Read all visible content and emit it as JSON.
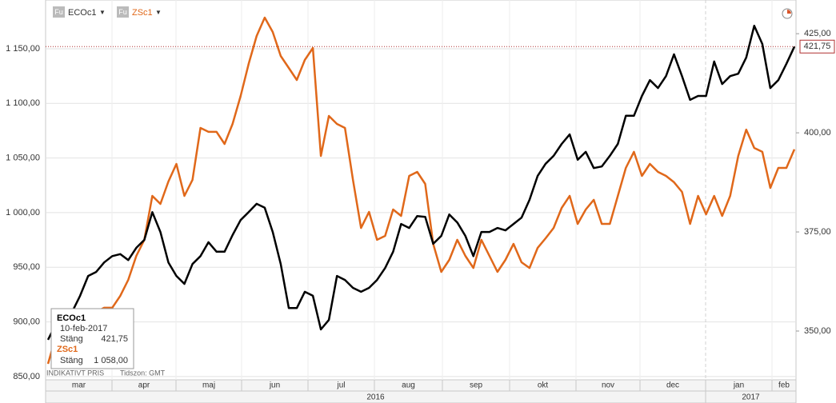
{
  "chart_data": {
    "type": "line",
    "legend_icon": "Fu",
    "months": [
      "mar",
      "apr",
      "maj",
      "jun",
      "jul",
      "aug",
      "sep",
      "okt",
      "nov",
      "dec",
      "jan",
      "feb"
    ],
    "years": [
      "2016",
      "2017"
    ],
    "footer": {
      "price_note": "INDIKATIVT PRIS",
      "timezone": "Tidszon: GMT"
    },
    "ylim": [
      847,
      1194.6
    ],
    "yticks": [
      {
        "value": 850,
        "label": "850,00"
      },
      {
        "value": 900,
        "label": "900,00"
      },
      {
        "value": 950,
        "label": "950,00"
      },
      {
        "value": 1000,
        "label": "1 000,00"
      },
      {
        "value": 1050,
        "label": "1 050,00"
      },
      {
        "value": 1100,
        "label": "1 100,00"
      },
      {
        "value": 1150,
        "label": "1 150,00"
      }
    ],
    "y2lim": [
      337.7,
      433.5
    ],
    "y2ticks": [
      {
        "value": 350,
        "label": "350,00"
      },
      {
        "value": 375,
        "label": "375,00"
      },
      {
        "value": 400,
        "label": "400,00"
      },
      {
        "value": 425,
        "label": "425,00"
      }
    ],
    "grid": true,
    "price_line": {
      "value": 421.75,
      "label": "421,75",
      "color": "#b03030"
    },
    "series": [
      {
        "name": "ECOc1",
        "color": "#000000",
        "axis": "y2",
        "values": [
          347.8,
          351.8,
          353.2,
          354.8,
          358.9,
          363.9,
          364.9,
          367.3,
          368.9,
          369.4,
          367.9,
          371.0,
          373.0,
          380.0,
          375.0,
          367.3,
          363.9,
          361.9,
          366.9,
          368.9,
          372.4,
          370.0,
          370.0,
          374.2,
          378.0,
          380.0,
          382.1,
          381.1,
          375.0,
          366.9,
          355.8,
          355.8,
          359.9,
          358.9,
          350.4,
          352.8,
          363.9,
          362.9,
          360.9,
          359.9,
          360.9,
          362.9,
          365.9,
          370.0,
          377.0,
          376.0,
          379.0,
          378.8,
          372.0,
          374.0,
          379.4,
          377.4,
          374.0,
          368.9,
          375.0,
          375.0,
          376.0,
          375.4,
          377.0,
          378.6,
          383.1,
          389.1,
          392.2,
          394.2,
          397.2,
          399.6,
          393.2,
          395.2,
          391.1,
          391.5,
          394.2,
          397.2,
          404.3,
          404.3,
          409.3,
          413.3,
          411.3,
          414.3,
          419.8,
          414.3,
          408.3,
          409.3,
          409.3,
          418.0,
          412.3,
          414.3,
          414.9,
          419.0,
          427.0,
          422.4,
          411.3,
          413.3,
          417.4,
          421.75
        ]
      },
      {
        "name": "ZSc1",
        "color": "#e0681a",
        "axis": "y",
        "values": [
          861.6,
          887.2,
          894.6,
          898.2,
          905.5,
          909.2,
          909.2,
          912.9,
          912.9,
          923.8,
          938.5,
          960.4,
          975.1,
          1015.3,
          1008.0,
          1028.5,
          1044.6,
          1015.3,
          1030.0,
          1077.5,
          1073.9,
          1073.9,
          1062.9,
          1081.2,
          1106.8,
          1136.1,
          1161.7,
          1178.5,
          1165.3,
          1143.4,
          1132.4,
          1121.4,
          1139.7,
          1150.7,
          1051.9,
          1088.5,
          1081.2,
          1077.5,
          1030.0,
          986.0,
          1000.7,
          975.1,
          978.7,
          1002.9,
          997.0,
          1033.6,
          1037.3,
          1026.3,
          971.4,
          945.8,
          956.8,
          975.1,
          960.4,
          949.4,
          975.1,
          960.4,
          945.8,
          956.8,
          971.4,
          954.6,
          949.4,
          967.7,
          976.5,
          986.0,
          1004.3,
          1015.3,
          989.7,
          1002.9,
          1011.7,
          989.7,
          989.7,
          1015.3,
          1040.9,
          1055.6,
          1033.6,
          1044.6,
          1037.3,
          1033.6,
          1027.8,
          1019.0,
          989.7,
          1015.3,
          998.5,
          1015.3,
          997.0,
          1015.3,
          1051.9,
          1076.0,
          1059.2,
          1055.6,
          1022.6,
          1040.9,
          1040.9,
          1058.0
        ]
      }
    ],
    "tooltip": {
      "date": "10-feb-2017",
      "close_label": "Stäng",
      "values": [
        "421,75",
        "1 058,00"
      ]
    }
  }
}
